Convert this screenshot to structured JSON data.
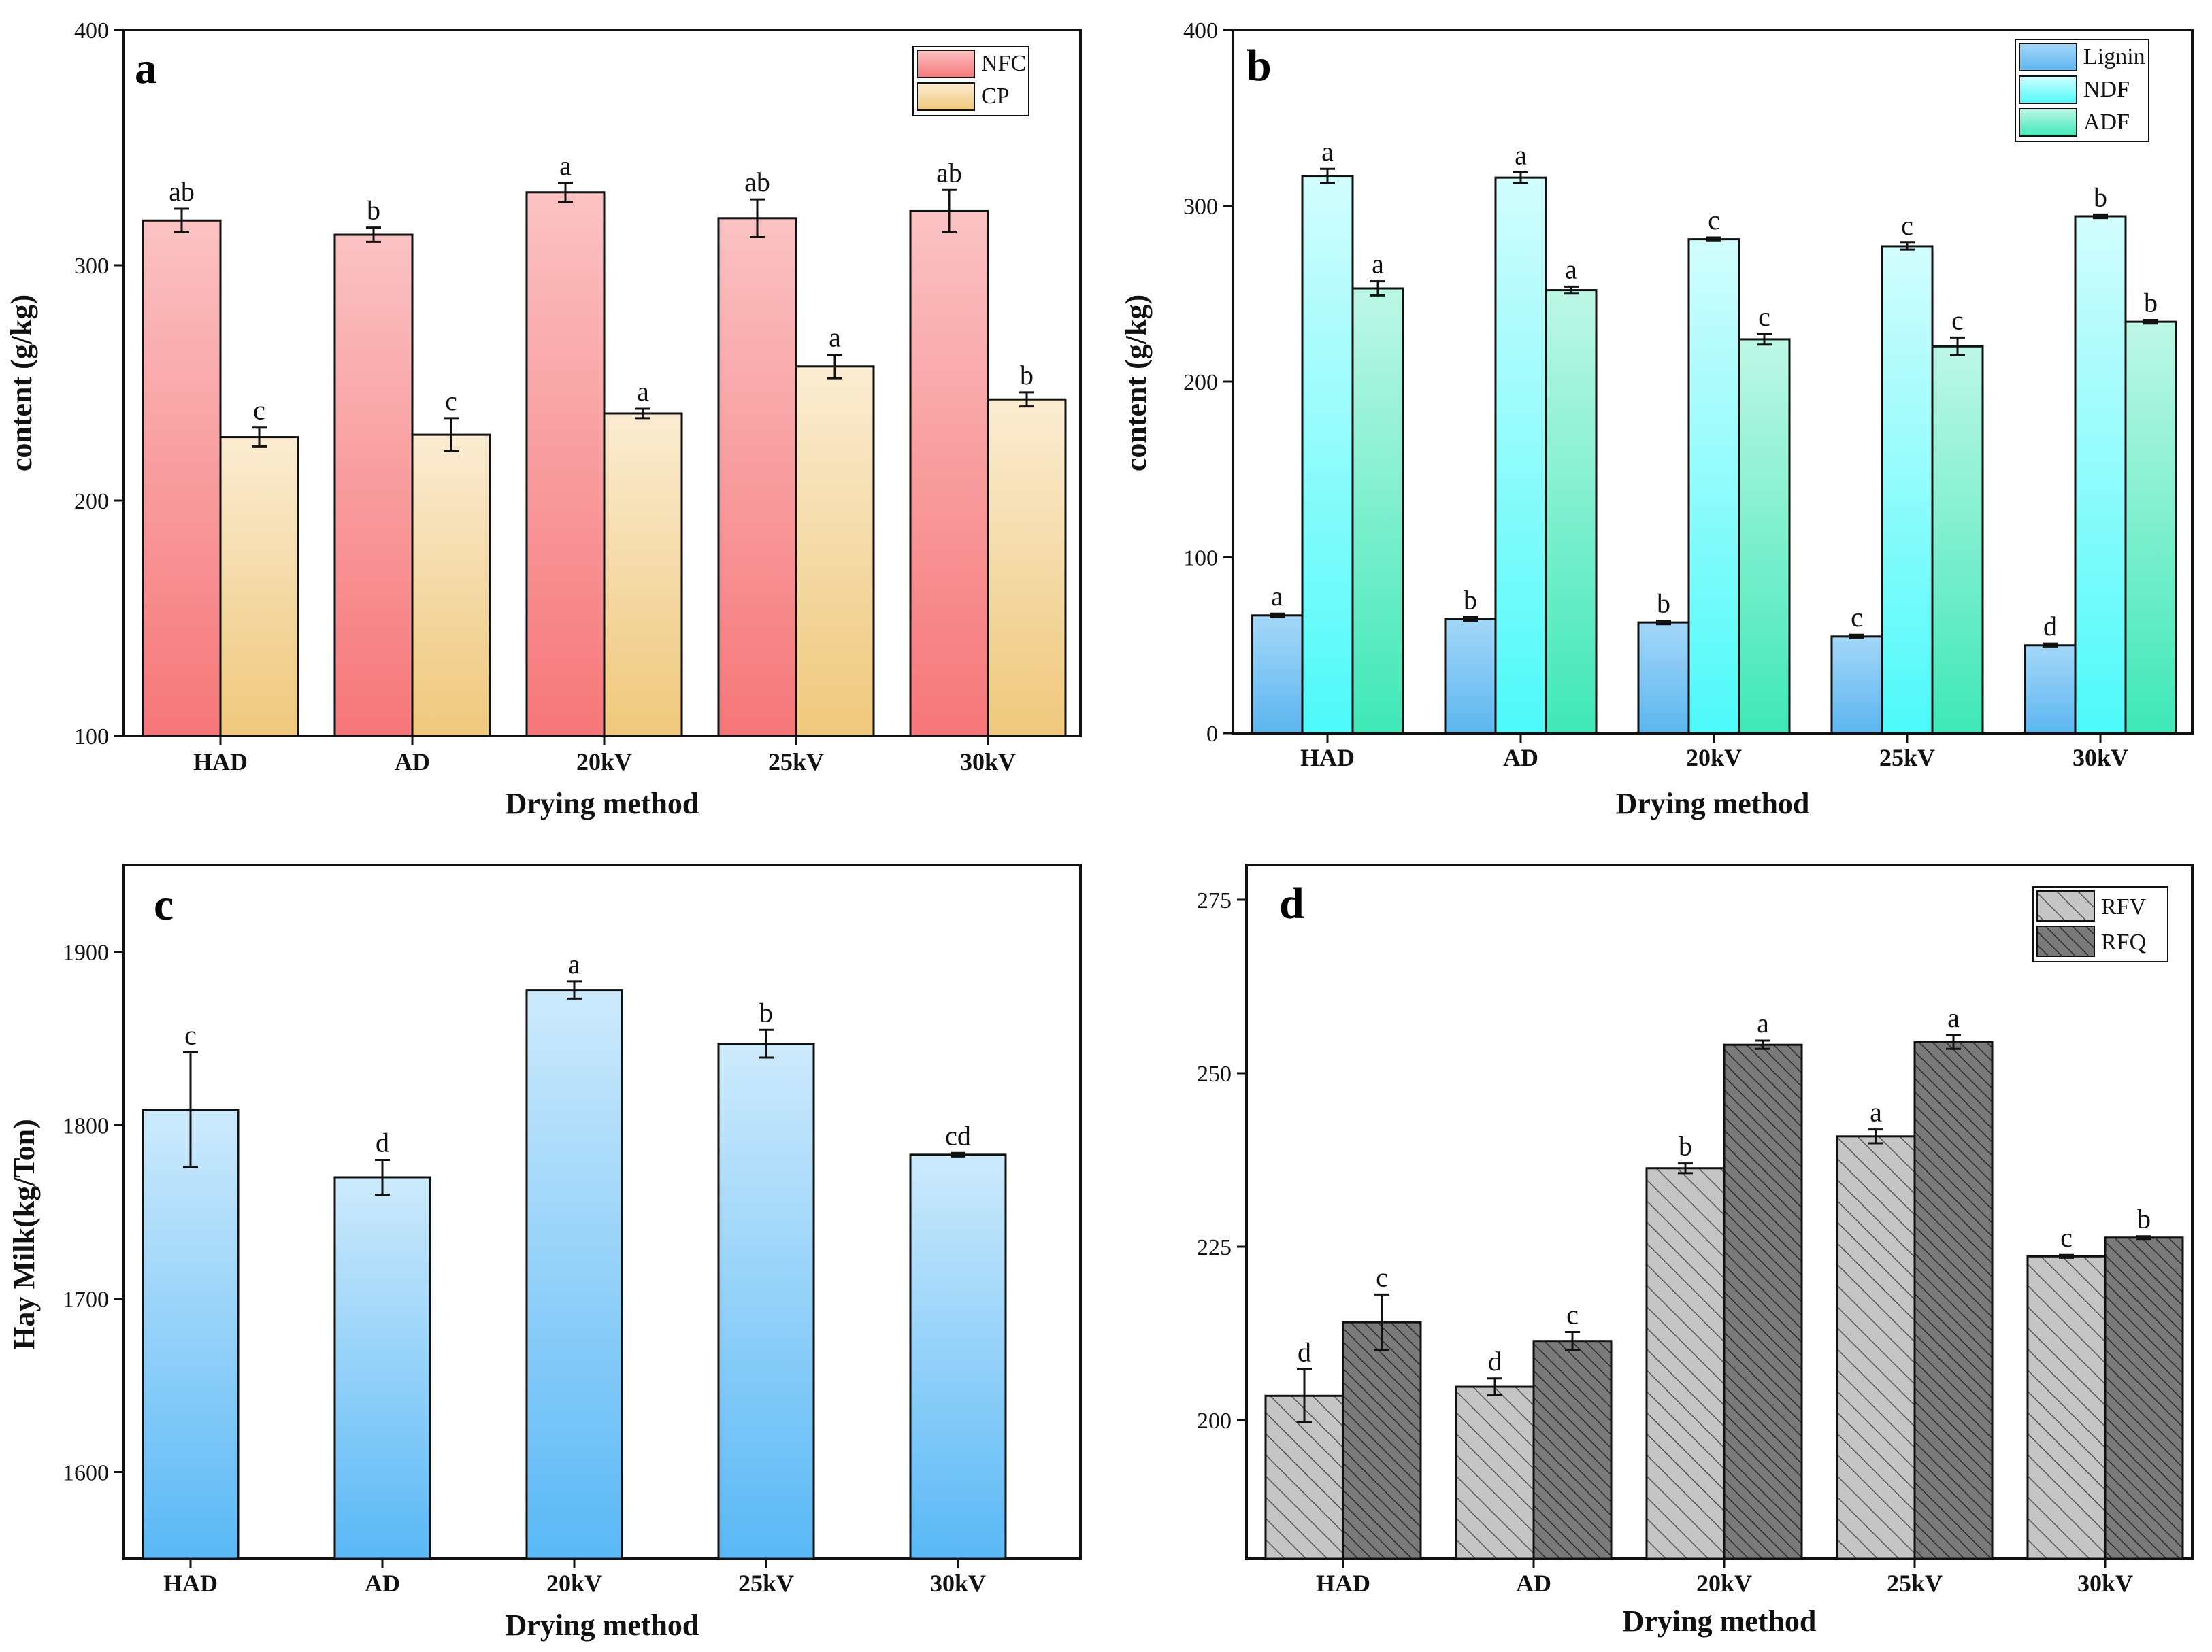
{
  "figure": {
    "panels": [
      "a",
      "b",
      "c",
      "d"
    ]
  },
  "colors": {
    "nfc_top": "#fbc2c3",
    "nfc_bottom": "#f67679",
    "cp_top": "#fbecd2",
    "cp_bottom": "#efc87b",
    "lignin_top": "#a4d7f8",
    "lignin_bottom": "#5cb6f0",
    "ndf_top": "#d2fdfd",
    "ndf_bottom": "#4dfafa",
    "adf_top": "#bdf7e5",
    "adf_bottom": "#3ee8b7",
    "hay_top": "#cdeafc",
    "hay_bottom": "#59b8f6",
    "rfv_fill": "#c5c5c5",
    "rfq_fill": "#6a6a6a"
  },
  "chart_data": [
    {
      "panel": "a",
      "type": "bar",
      "title": "",
      "xlabel": "Drying method",
      "ylabel": "content (g/kg)",
      "ylim": [
        100,
        400
      ],
      "yticks": [
        100,
        200,
        300,
        400
      ],
      "legend_position": "top-right",
      "categories": [
        "HAD",
        "AD",
        "20kV",
        "25kV",
        "30kV"
      ],
      "series": [
        {
          "name": "NFC",
          "values": [
            319,
            313,
            331,
            320,
            323
          ],
          "errors": [
            5,
            3,
            4,
            8,
            9
          ],
          "labels": [
            "ab",
            "b",
            "a",
            "ab",
            "ab"
          ],
          "color_key": "nfc"
        },
        {
          "name": "CP",
          "values": [
            227,
            228,
            237,
            257,
            243
          ],
          "errors": [
            4,
            7,
            2,
            5,
            3
          ],
          "labels": [
            "c",
            "c",
            "a",
            "a",
            "b"
          ],
          "color_key": "cp"
        }
      ]
    },
    {
      "panel": "b",
      "type": "bar",
      "title": "",
      "xlabel": "Drying method",
      "ylabel": "content (g/kg)",
      "ylim": [
        0,
        400
      ],
      "yticks": [
        0,
        100,
        200,
        300,
        400
      ],
      "legend_position": "top-right",
      "categories": [
        "HAD",
        "AD",
        "20kV",
        "25kV",
        "30kV"
      ],
      "series": [
        {
          "name": "Lignin",
          "values": [
            67,
            65,
            63,
            55,
            50
          ],
          "errors": [
            1,
            1,
            1,
            1,
            1
          ],
          "labels": [
            "a",
            "b",
            "b",
            "c",
            "d"
          ],
          "color_key": "lignin"
        },
        {
          "name": "NDF",
          "values": [
            317,
            316,
            281,
            277,
            294
          ],
          "errors": [
            4,
            3,
            1,
            2,
            1
          ],
          "labels": [
            "a",
            "a",
            "c",
            "c",
            "b"
          ],
          "color_key": "ndf"
        },
        {
          "name": "ADF",
          "values": [
            253,
            252,
            224,
            220,
            234
          ],
          "errors": [
            4,
            2,
            3,
            5,
            1
          ],
          "labels": [
            "a",
            "a",
            "c",
            "c",
            "b"
          ],
          "color_key": "adf"
        }
      ]
    },
    {
      "panel": "c",
      "type": "bar",
      "title": "",
      "xlabel": "Drying method",
      "ylabel": "Hay Milk(kg/Ton)",
      "ylim": [
        1550,
        1950
      ],
      "yticks": [
        1600,
        1700,
        1800,
        1900
      ],
      "categories": [
        "HAD",
        "AD",
        "20kV",
        "25kV",
        "30kV"
      ],
      "series": [
        {
          "name": "Hay Milk",
          "values": [
            1809,
            1770,
            1878,
            1847,
            1783
          ],
          "errors": [
            33,
            10,
            5,
            8,
            1
          ],
          "labels": [
            "c",
            "d",
            "a",
            "b",
            "cd"
          ],
          "color_key": "hay"
        }
      ]
    },
    {
      "panel": "d",
      "type": "bar",
      "title": "",
      "xlabel": "Drying method",
      "ylabel": "",
      "ylim": [
        180,
        280
      ],
      "yticks": [
        200,
        225,
        250,
        275
      ],
      "legend_position": "top-right",
      "categories": [
        "HAD",
        "AD",
        "20kV",
        "25kV",
        "30kV"
      ],
      "series": [
        {
          "name": "RFV",
          "values": [
            203.5,
            204.8,
            236.3,
            240.9,
            223.6
          ],
          "errors": [
            3.8,
            1.2,
            0.7,
            1.0,
            0.2
          ],
          "labels": [
            "d",
            "d",
            "b",
            "a",
            "c"
          ],
          "color_key": "rfv"
        },
        {
          "name": "RFQ",
          "values": [
            214.1,
            211.4,
            254.1,
            254.5,
            226.3
          ],
          "errors": [
            4.0,
            1.3,
            0.6,
            1.0,
            0.2
          ],
          "labels": [
            "c",
            "c",
            "a",
            "a",
            "b"
          ],
          "color_key": "rfq"
        }
      ]
    }
  ]
}
